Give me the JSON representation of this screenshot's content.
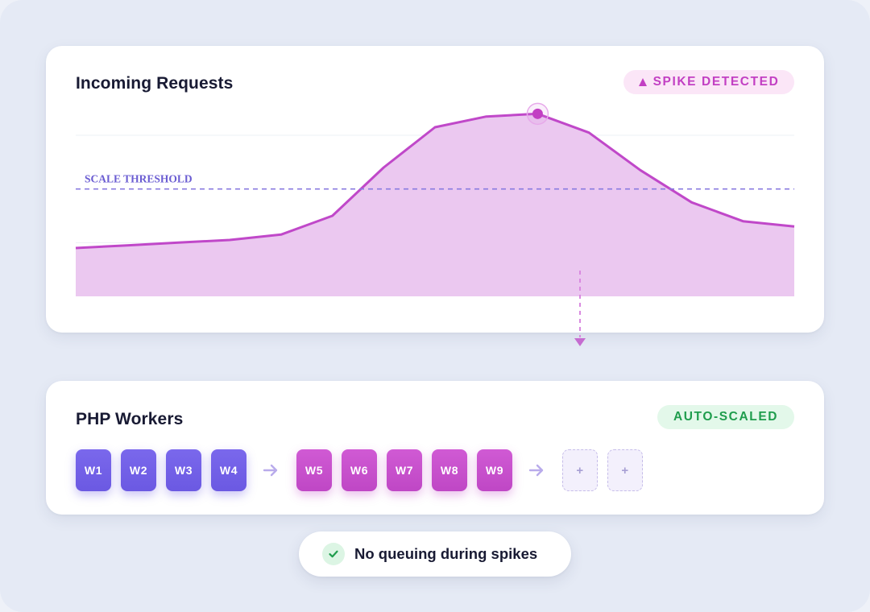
{
  "requests_card": {
    "title": "Incoming Requests",
    "badge": "SPIKE DETECTED",
    "badge_icon": "warning-triangle-icon",
    "threshold_label": "SCALE THRESHOLD"
  },
  "workers_card": {
    "title": "PHP Workers",
    "badge": "AUTO-SCALED",
    "existing_workers": [
      "W1",
      "W2",
      "W3",
      "W4"
    ],
    "scaled_workers": [
      "W5",
      "W6",
      "W7",
      "W8",
      "W9"
    ],
    "empty_slots": [
      "+",
      "+"
    ]
  },
  "footer": {
    "text": "No queuing during spikes",
    "icon": "check-icon"
  },
  "colors": {
    "spike_accent": "#c23fc3",
    "line": "#c048c9",
    "area_fill": "#ebc8f0",
    "threshold": "#8a7be0",
    "existing_worker": "#6b59e2",
    "scaled_worker": "#bf47c5",
    "success": "#1f9d4d"
  },
  "chart_data": {
    "type": "area",
    "title": "Incoming Requests",
    "x": [
      0,
      1,
      2,
      3,
      4,
      5,
      6,
      7,
      8,
      9,
      10,
      11,
      12,
      13,
      14
    ],
    "series": [
      {
        "values": [
          18,
          19,
          20,
          21,
          23,
          30,
          48,
          63,
          67,
          68,
          61,
          47,
          35,
          28,
          26
        ]
      }
    ],
    "ylim": [
      0,
      75
    ],
    "threshold": 40,
    "threshold_label": "SCALE THRESHOLD",
    "peak_index": 9,
    "grid": true,
    "legend": "none"
  }
}
